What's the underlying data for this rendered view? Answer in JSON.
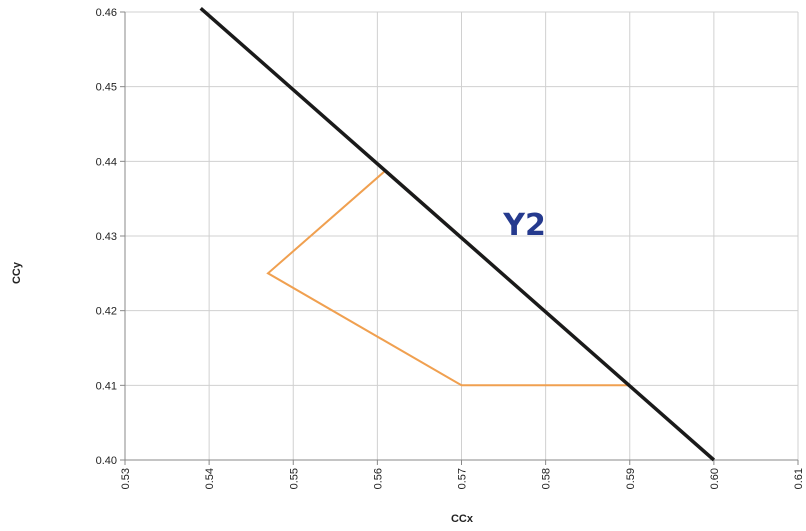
{
  "chart_data": {
    "type": "line",
    "title": "",
    "xlabel": "CCx",
    "ylabel": "CCy",
    "xlim": [
      0.53,
      0.61
    ],
    "ylim": [
      0.4,
      0.46
    ],
    "x_ticks": [
      "0.53",
      "0.54",
      "0.55",
      "0.56",
      "0.57",
      "0.58",
      "0.59",
      "0.60",
      "0.61"
    ],
    "y_ticks": [
      "0.40",
      "0.41",
      "0.42",
      "0.43",
      "0.44",
      "0.45",
      "0.46"
    ],
    "grid": true,
    "series": [
      {
        "color": "#1a1a1a",
        "points": [
          [
            0.539,
            0.4605
          ],
          [
            0.6,
            0.4
          ]
        ]
      },
      {
        "color": "#f0a050",
        "closed": true,
        "points": [
          [
            0.561,
            0.4388
          ],
          [
            0.547,
            0.425
          ],
          [
            0.57,
            0.41
          ],
          [
            0.59,
            0.41
          ]
        ]
      }
    ],
    "annotations": [
      {
        "text": "Y2",
        "x": 0.5775,
        "y": 0.4316,
        "color": "#253a8e"
      }
    ]
  }
}
